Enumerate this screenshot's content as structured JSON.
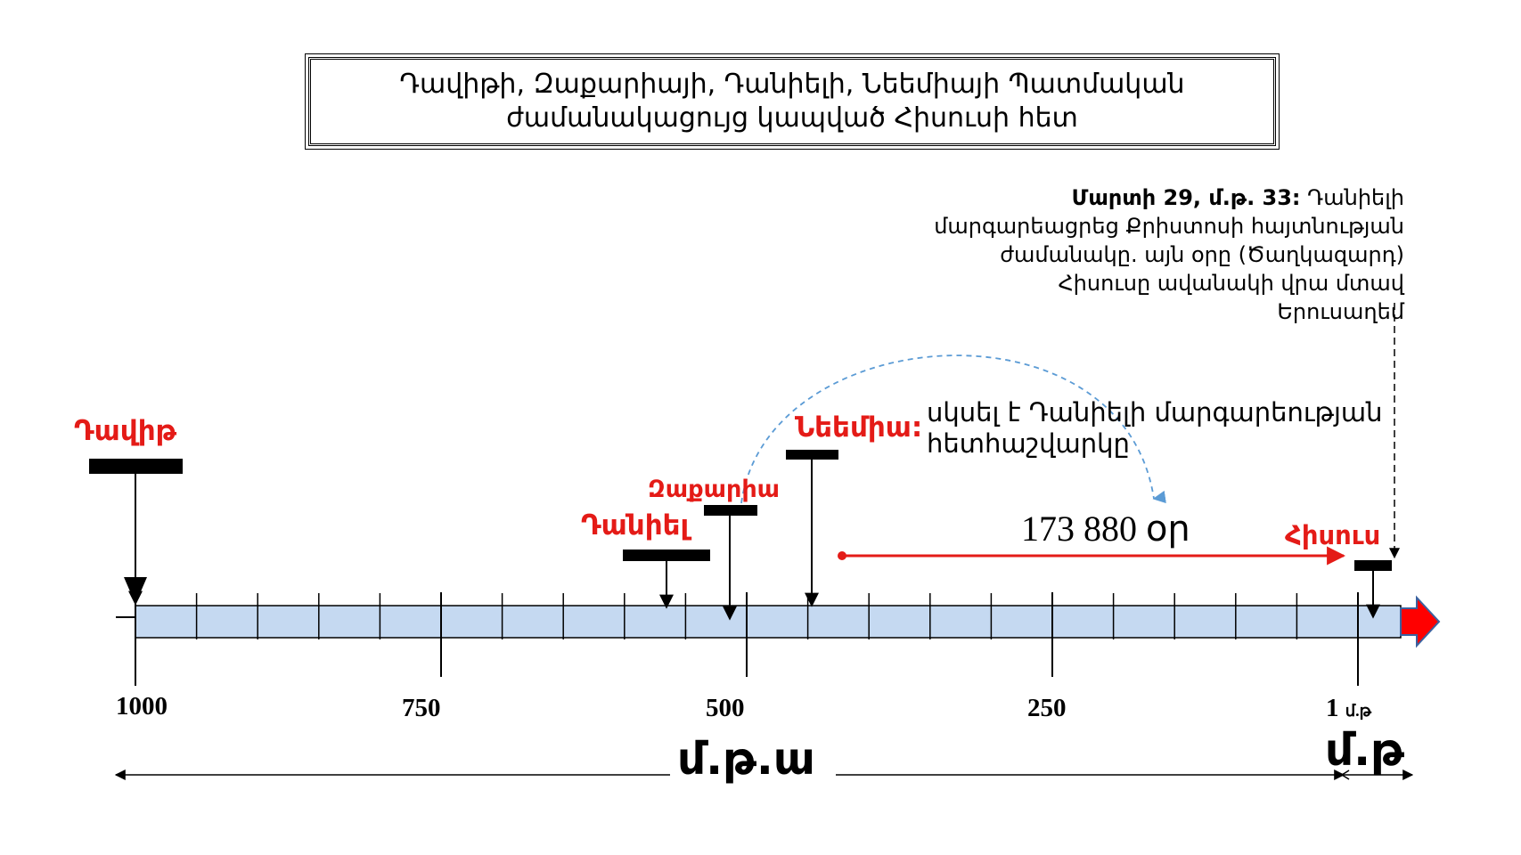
{
  "title": {
    "line1": "Դավիթի, Զաքարիայի, Դանիելի, Նեեմիայի Պատմական",
    "line2": "ժամանակացույց կապված Հիսուսի հետ"
  },
  "note": {
    "date_bold": "Մարտի 29, մ.թ. 33:",
    "line1": "Դանիելի",
    "line2": "մարգարեացրեց Քրիստոսի հայտնության",
    "line3": "ժամանակը. այն օրը (Ծաղկազարդ)",
    "line4": "Հիսուսը ավանակի վրա մտավ",
    "line5": "Երուսաղեմ"
  },
  "quote": {
    "line1": "սկսել է Դանիելի մարգարեության",
    "line2": "հետհաշվարկը"
  },
  "days_label": "173 880 օր",
  "people": {
    "david": "Դավիթ",
    "daniel": "Դանիել",
    "zechariah": "Զաքարիա",
    "nehemiah": "Նեեմիա:",
    "jesus": "Հիսուս"
  },
  "axis": {
    "y1000": "1000",
    "y750": "750",
    "y500": "500",
    "y250": "250",
    "y1": "1",
    "y1_suffix": "մ.թ"
  },
  "eras": {
    "bc": "մ.թ.ա",
    "ad": "մ.թ"
  },
  "colors": {
    "timeline_fill": "#c5d9f1",
    "accent_red": "#e41b17",
    "dashed_blue": "#5b9bd5"
  }
}
